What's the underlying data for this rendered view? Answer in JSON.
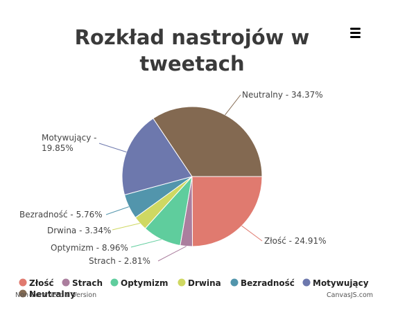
{
  "chart_data": {
    "type": "pie",
    "title": "Rozkład nastrojów w tweetach",
    "title_lines": [
      "Rozkład nastrojów w",
      "tweetach"
    ],
    "slices": [
      {
        "label": "Złość",
        "value": 24.91,
        "color": "#E07A6F"
      },
      {
        "label": "Strach",
        "value": 2.81,
        "color": "#AB7E9E"
      },
      {
        "label": "Optymizm",
        "value": 8.96,
        "color": "#5FCD9D"
      },
      {
        "label": "Drwina",
        "value": 3.34,
        "color": "#CFD862"
      },
      {
        "label": "Bezradność",
        "value": 5.76,
        "color": "#5295AC"
      },
      {
        "label": "Motywujący",
        "value": 19.85,
        "color": "#6D78AD"
      },
      {
        "label": "Neutralny",
        "value": 34.37,
        "color": "#836951"
      }
    ],
    "index_labels": [
      "Złość - 24.91%",
      "Strach - 2.81%",
      "Optymizm - 8.96%",
      "Drwina - 3.34%",
      "Bezradność - 5.76%",
      "Motywujący -",
      "19.85%",
      "Neutralny - 34.37%"
    ],
    "legend_position": "bottom"
  },
  "credits": {
    "left": "Non-Commercial Version",
    "right": "CanvasJS.com"
  },
  "menu_icon": "hamburger-menu-icon"
}
